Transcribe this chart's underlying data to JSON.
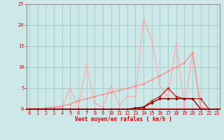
{
  "xlabel": "Vent moyen/en rafales ( km/h )",
  "background_color": "#cce8e8",
  "grid_color": "#aacccc",
  "x_values": [
    0,
    1,
    2,
    3,
    4,
    5,
    6,
    7,
    8,
    9,
    10,
    11,
    12,
    13,
    14,
    15,
    16,
    17,
    18,
    19,
    20,
    21,
    22,
    23
  ],
  "line1_y": [
    0.2,
    0.2,
    0.2,
    0.3,
    0.5,
    5.0,
    0.5,
    10.5,
    1.5,
    0.5,
    5.5,
    1.0,
    3.0,
    3.0,
    21.5,
    16.5,
    5.5,
    3.0,
    15.5,
    0.5,
    13.5,
    0.0,
    0.0,
    0.0
  ],
  "line1_color": "#ffaaaa",
  "line2_y": [
    0.0,
    0.0,
    0.3,
    0.5,
    0.8,
    1.2,
    2.0,
    2.5,
    3.0,
    3.5,
    4.0,
    4.5,
    5.0,
    5.5,
    6.0,
    7.0,
    8.0,
    9.0,
    10.0,
    11.0,
    13.5,
    0.5,
    0.0,
    0.0
  ],
  "line2_color": "#ff8888",
  "line3_y": [
    0,
    0,
    0,
    0,
    0,
    0,
    0,
    0,
    0,
    0,
    0,
    0,
    0,
    0,
    0.5,
    2.0,
    3.0,
    5.0,
    3.0,
    2.5,
    2.5,
    2.5,
    0.0,
    0.0
  ],
  "line3_color": "#cc2222",
  "line4_y": [
    0,
    0,
    0,
    0,
    0,
    0,
    0,
    0,
    0,
    0,
    0,
    0,
    0,
    0.3,
    0.5,
    1.5,
    2.5,
    2.5,
    2.5,
    2.5,
    2.5,
    0.0,
    0.0,
    0.0
  ],
  "line4_color": "#880000",
  "ylim": [
    0,
    25
  ],
  "xlim_min": -0.3,
  "xlim_max": 23.3,
  "yticks": [
    0,
    5,
    10,
    15,
    20,
    25
  ],
  "xticks": [
    0,
    1,
    2,
    3,
    4,
    5,
    6,
    7,
    8,
    9,
    10,
    11,
    12,
    13,
    14,
    15,
    16,
    17,
    18,
    19,
    20,
    21,
    22,
    23
  ],
  "tick_color": "#cc0000",
  "spine_bottom_color": "#cc0000",
  "xlabel_color": "#cc0000"
}
